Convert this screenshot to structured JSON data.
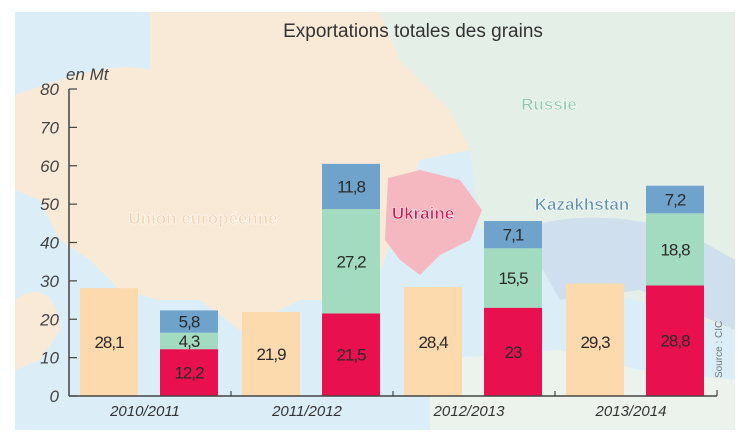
{
  "chart_data": {
    "type": "bar",
    "title": "Exportations totales des grains",
    "ylabel": "en Mt",
    "xlabel": "",
    "ylim": [
      0,
      80
    ],
    "yticks": [
      0,
      10,
      20,
      30,
      40,
      50,
      60,
      70,
      80
    ],
    "categories": [
      "2010/2011",
      "2011/2012",
      "2012/2013",
      "2013/2014"
    ],
    "series": [
      {
        "name": "Union européenne",
        "stack": "eu",
        "color": "#fdd9ae",
        "label_color": "#f3d2b0",
        "values": [
          28.1,
          21.9,
          28.4,
          29.3
        ],
        "labels": [
          "28,1",
          "21,9",
          "28,4",
          "29,3"
        ]
      },
      {
        "name": "Ukraine",
        "stack": "bsr",
        "color": "#e8104f",
        "label_color": "#e0104c",
        "values": [
          12.2,
          21.5,
          23,
          28.8
        ],
        "labels": [
          "12,2",
          "21,5",
          "23",
          "28,8"
        ]
      },
      {
        "name": "Russie",
        "stack": "bsr",
        "color": "#a3dbc0",
        "label_color": "#8fc9b1",
        "values": [
          4.3,
          27.2,
          15.5,
          18.8
        ],
        "labels": [
          "4,3",
          "27,2",
          "15,5",
          "18,8"
        ]
      },
      {
        "name": "Kazakhstan",
        "stack": "bsr",
        "color": "#6fa3cc",
        "label_color": "#5d8fb0",
        "values": [
          5.8,
          11.8,
          7.1,
          7.2
        ],
        "labels": [
          "5,8",
          "11,8",
          "7,1",
          "7,2"
        ]
      }
    ],
    "source": "Source : CIC",
    "grid": false
  }
}
